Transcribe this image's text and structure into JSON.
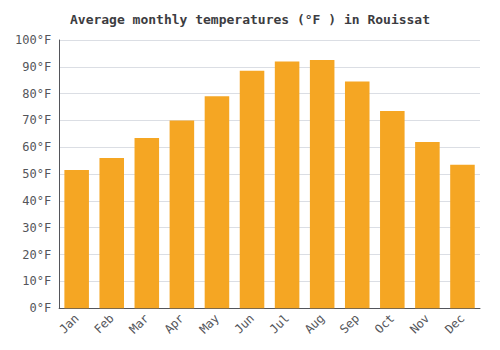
{
  "chart_data": {
    "type": "bar",
    "title": "Average monthly temperatures (°F ) in Rouissat",
    "categories": [
      "Jan",
      "Feb",
      "Mar",
      "Apr",
      "May",
      "Jun",
      "Jul",
      "Aug",
      "Sep",
      "Oct",
      "Nov",
      "Dec"
    ],
    "values": [
      51.5,
      56.0,
      63.5,
      70.0,
      79.0,
      88.5,
      92.0,
      92.5,
      84.5,
      73.5,
      62.0,
      53.5
    ],
    "color": "#F5A623",
    "ylim": [
      0,
      100
    ],
    "yticks": [
      {
        "value": 0,
        "label": "0°F"
      },
      {
        "value": 10,
        "label": "10°F"
      },
      {
        "value": 20,
        "label": "20°F"
      },
      {
        "value": 30,
        "label": "30°F"
      },
      {
        "value": 40,
        "label": "40°F"
      },
      {
        "value": 50,
        "label": "50°F"
      },
      {
        "value": 60,
        "label": "60°F"
      },
      {
        "value": 70,
        "label": "70°F"
      },
      {
        "value": 80,
        "label": "80°F"
      },
      {
        "value": 90,
        "label": "90°F"
      },
      {
        "value": 100,
        "label": "100°F"
      }
    ],
    "grid": true
  }
}
